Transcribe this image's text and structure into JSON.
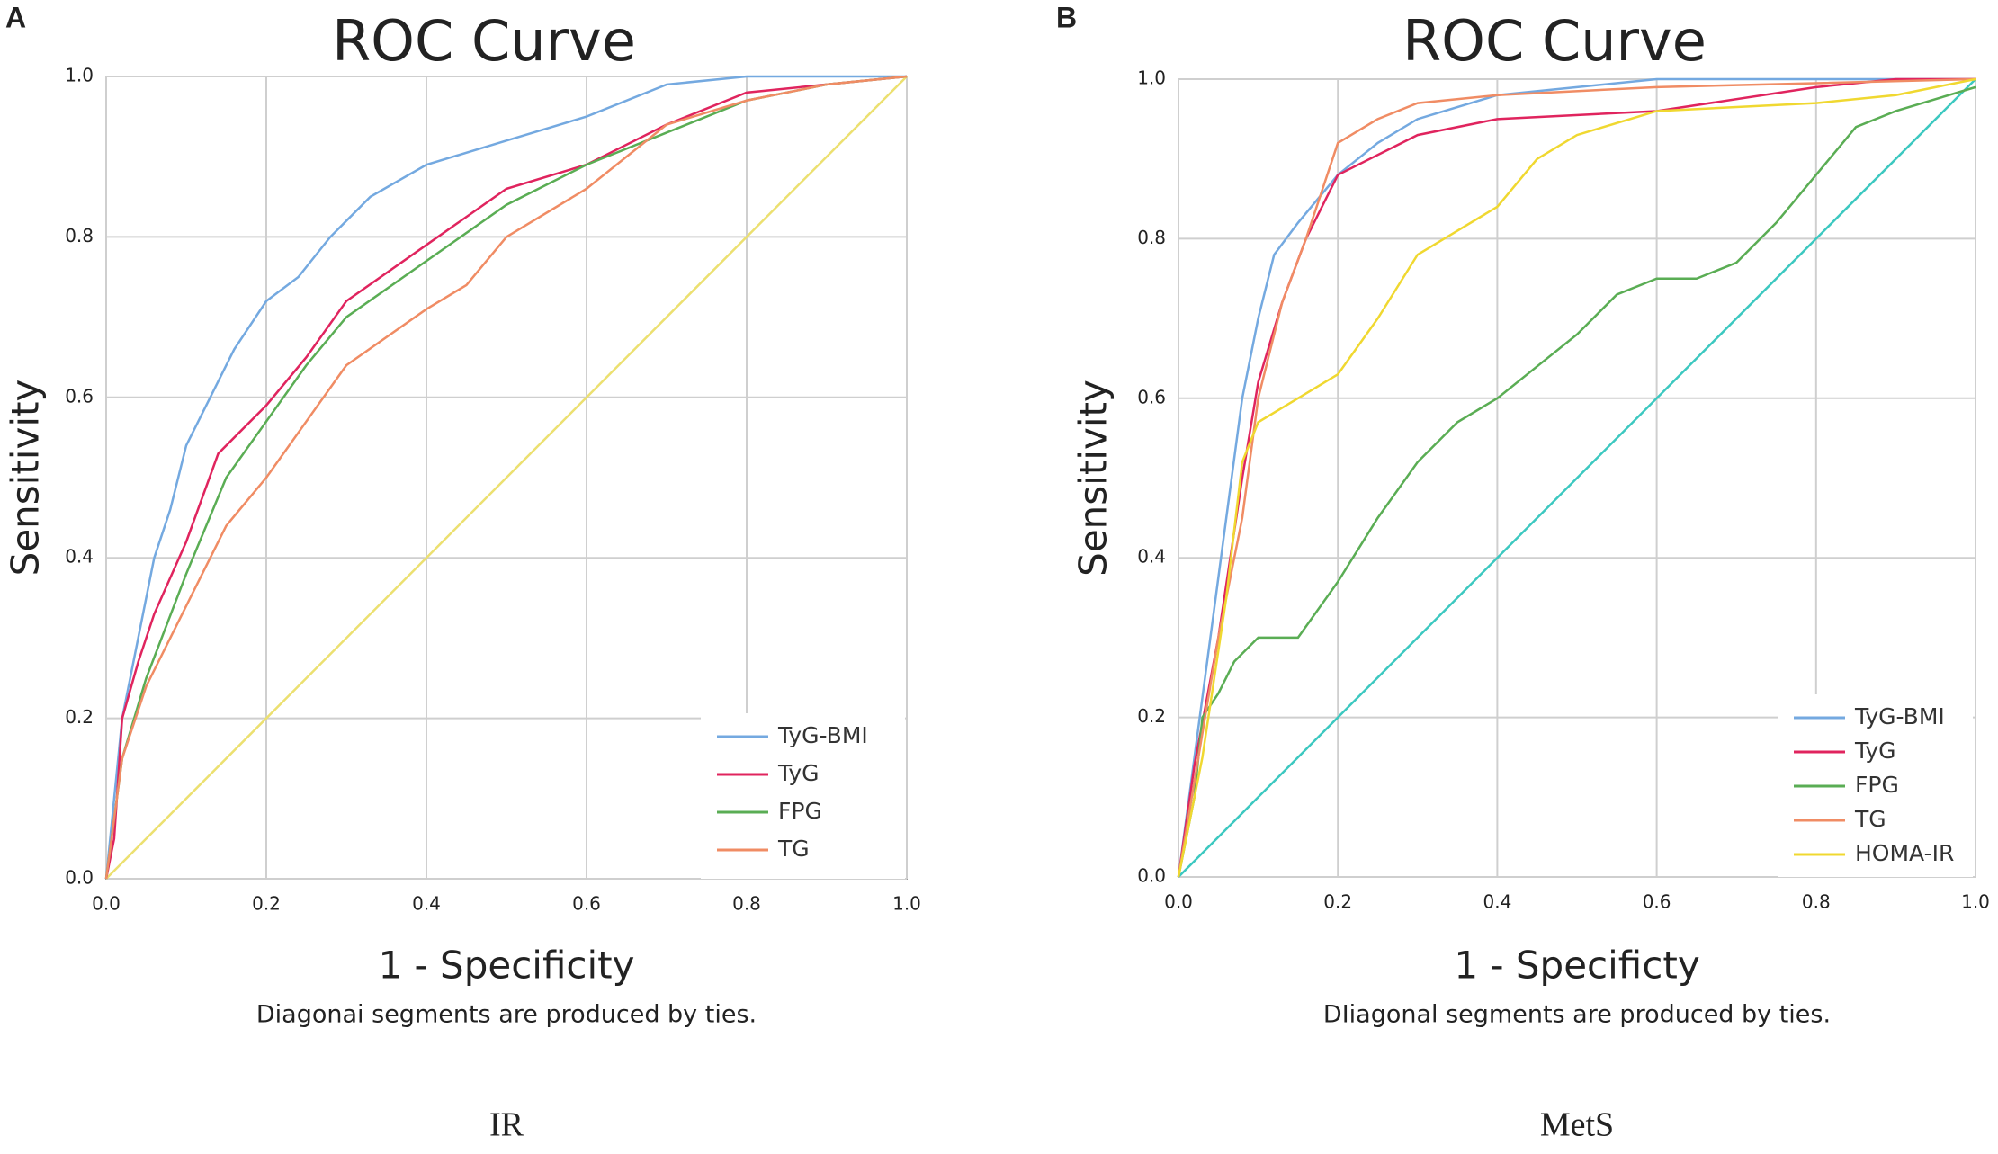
{
  "chart_data": [
    {
      "type": "line",
      "panel": "A",
      "title": "ROC Curve",
      "x_label": "1 - Specificity",
      "y_label": "Sensitivity",
      "footnote": "Diagonai segments are produced by ties.",
      "caption": "IR",
      "xlim": [
        0,
        1
      ],
      "ylim": [
        0,
        1
      ],
      "xticks": [
        {
          "value": 0,
          "label": "0.0"
        },
        0.2,
        0.4,
        0.6,
        0.8,
        {
          "value": 1,
          "label": "1.0"
        }
      ],
      "yticks": [
        {
          "value": 0,
          "label": "0.0"
        },
        0.2,
        0.4,
        0.6,
        0.8,
        {
          "value": 1,
          "label": "1.0"
        }
      ],
      "grid": true,
      "diagonal_color": "#ece070",
      "legend": "lower-right",
      "series": [
        {
          "name": "TyG-BMI",
          "color": "#74a9e0",
          "x": [
            0,
            0.01,
            0.02,
            0.04,
            0.06,
            0.08,
            0.1,
            0.13,
            0.16,
            0.2,
            0.24,
            0.28,
            0.33,
            0.4,
            0.5,
            0.6,
            0.7,
            0.8,
            1
          ],
          "values": [
            0,
            0.1,
            0.2,
            0.3,
            0.4,
            0.46,
            0.54,
            0.6,
            0.66,
            0.72,
            0.75,
            0.8,
            0.85,
            0.89,
            0.92,
            0.95,
            0.99,
            1,
            1
          ]
        },
        {
          "name": "TyG",
          "color": "#e0245e",
          "x": [
            0,
            0.01,
            0.02,
            0.04,
            0.06,
            0.1,
            0.14,
            0.2,
            0.25,
            0.3,
            0.4,
            0.5,
            0.6,
            0.7,
            0.8,
            0.9,
            1
          ],
          "values": [
            0,
            0.05,
            0.2,
            0.27,
            0.33,
            0.42,
            0.53,
            0.59,
            0.65,
            0.72,
            0.79,
            0.86,
            0.89,
            0.94,
            0.98,
            0.99,
            1
          ]
        },
        {
          "name": "FPG",
          "color": "#5aad54",
          "x": [
            0,
            0.02,
            0.05,
            0.1,
            0.15,
            0.2,
            0.25,
            0.3,
            0.4,
            0.5,
            0.6,
            0.7,
            0.8,
            0.9,
            1
          ],
          "values": [
            0,
            0.15,
            0.25,
            0.38,
            0.5,
            0.57,
            0.64,
            0.7,
            0.77,
            0.84,
            0.89,
            0.93,
            0.97,
            0.99,
            1
          ]
        },
        {
          "name": "TG",
          "color": "#f08c64",
          "x": [
            0,
            0.02,
            0.05,
            0.1,
            0.15,
            0.2,
            0.25,
            0.3,
            0.4,
            0.45,
            0.5,
            0.6,
            0.7,
            0.8,
            0.9,
            1
          ],
          "values": [
            0,
            0.15,
            0.24,
            0.34,
            0.44,
            0.5,
            0.57,
            0.64,
            0.71,
            0.74,
            0.8,
            0.86,
            0.94,
            0.97,
            0.99,
            1
          ]
        }
      ]
    },
    {
      "type": "line",
      "panel": "B",
      "title": "ROC Curve",
      "x_label": "1 - Specificty",
      "y_label": "Sensitivity",
      "footnote": "DIiagonal segments are produced by ties.",
      "caption": "MetS",
      "xlim": [
        0,
        1
      ],
      "ylim": [
        0,
        1
      ],
      "xticks": [
        {
          "value": 0,
          "label": "0.0"
        },
        0.2,
        0.4,
        0.6,
        0.8,
        {
          "value": 1,
          "label": "1.0"
        }
      ],
      "yticks": [
        {
          "value": 0,
          "label": "0.0"
        },
        0.2,
        0.4,
        0.6,
        0.8,
        {
          "value": 1,
          "label": "1.0"
        }
      ],
      "grid": true,
      "diagonal_color": "#3cc8c0",
      "legend": "lower-right",
      "series": [
        {
          "name": "TyG-BMI",
          "color": "#74a9e0",
          "x": [
            0,
            0.02,
            0.04,
            0.06,
            0.08,
            0.1,
            0.12,
            0.15,
            0.2,
            0.25,
            0.3,
            0.4,
            0.5,
            0.6,
            1
          ],
          "values": [
            0,
            0.15,
            0.3,
            0.45,
            0.6,
            0.7,
            0.78,
            0.82,
            0.88,
            0.92,
            0.95,
            0.98,
            0.99,
            1,
            1
          ]
        },
        {
          "name": "TyG",
          "color": "#e0245e",
          "x": [
            0,
            0.02,
            0.05,
            0.08,
            0.1,
            0.13,
            0.16,
            0.2,
            0.3,
            0.4,
            0.6,
            0.8,
            0.9,
            1
          ],
          "values": [
            0,
            0.14,
            0.3,
            0.5,
            0.62,
            0.72,
            0.8,
            0.88,
            0.93,
            0.95,
            0.96,
            0.99,
            1,
            1
          ]
        },
        {
          "name": "FPG",
          "color": "#5aad54",
          "x": [
            0,
            0.02,
            0.03,
            0.05,
            0.07,
            0.1,
            0.15,
            0.2,
            0.25,
            0.3,
            0.35,
            0.4,
            0.45,
            0.5,
            0.55,
            0.6,
            0.65,
            0.7,
            0.75,
            0.8,
            0.85,
            0.9,
            1
          ],
          "values": [
            0,
            0.1,
            0.2,
            0.23,
            0.27,
            0.3,
            0.3,
            0.37,
            0.45,
            0.52,
            0.57,
            0.6,
            0.64,
            0.68,
            0.73,
            0.75,
            0.75,
            0.77,
            0.82,
            0.88,
            0.94,
            0.96,
            0.99
          ]
        },
        {
          "name": "TG",
          "color": "#f08c64",
          "x": [
            0,
            0.02,
            0.05,
            0.08,
            0.1,
            0.13,
            0.16,
            0.2,
            0.25,
            0.3,
            0.4,
            0.6,
            1
          ],
          "values": [
            0,
            0.12,
            0.3,
            0.45,
            0.6,
            0.72,
            0.8,
            0.92,
            0.95,
            0.97,
            0.98,
            0.99,
            1
          ]
        },
        {
          "name": "HOMA-IR",
          "color": "#f0d830",
          "x": [
            0,
            0.03,
            0.06,
            0.08,
            0.1,
            0.15,
            0.2,
            0.25,
            0.3,
            0.35,
            0.4,
            0.45,
            0.5,
            0.6,
            0.8,
            0.9,
            1
          ],
          "values": [
            0,
            0.15,
            0.35,
            0.52,
            0.57,
            0.6,
            0.63,
            0.7,
            0.78,
            0.81,
            0.84,
            0.9,
            0.93,
            0.96,
            0.97,
            0.98,
            1
          ]
        }
      ]
    }
  ]
}
